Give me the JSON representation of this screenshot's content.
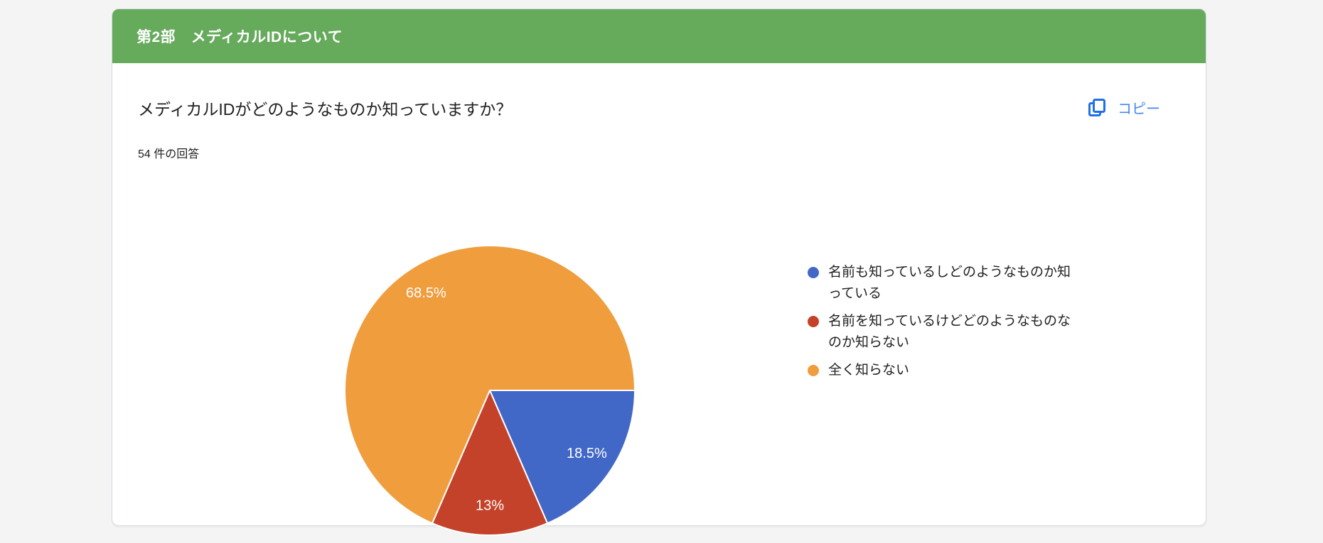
{
  "section_header": {
    "title": "第2部　メディカルIDについて",
    "background_color": "#66aa5c"
  },
  "question": {
    "title": "メディカルIDがどのようなものか知っていますか？",
    "response_count": "54 件の回答",
    "copy_label": "コピー",
    "copy_color": "#4285f4"
  },
  "chart_data": {
    "type": "pie",
    "title": "メディカルIDがどのようなものか知っていますか？",
    "total_responses_text": "54 件の回答",
    "start_angle_deg": 0,
    "direction": "clockwise",
    "legend_position": "right",
    "slices": [
      {
        "label": "名前も知っているしどのようなものか知っている",
        "percent": 18.5,
        "data_label": "18.5%",
        "color": "#4268c7"
      },
      {
        "label": "名前を知っているけどどのようなものなのか知らない",
        "percent": 13,
        "data_label": "13%",
        "color": "#c4422a"
      },
      {
        "label": "全く知らない",
        "percent": 68.5,
        "data_label": "68.5%",
        "color": "#f09d3e"
      }
    ]
  }
}
